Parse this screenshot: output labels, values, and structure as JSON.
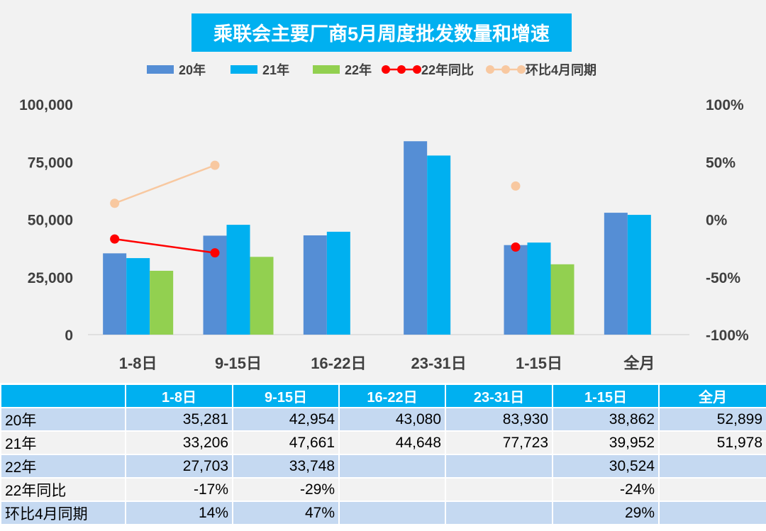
{
  "chart_data": {
    "type": "bar",
    "title": "乘联会主要厂商5月周度批发数量和增速",
    "categories": [
      "1-8日",
      "9-15日",
      "16-22日",
      "23-31日",
      "1-15日",
      "全月"
    ],
    "series": [
      {
        "name": "20年",
        "kind": "bar",
        "axis": "left",
        "color": "#558ed5",
        "values": [
          35281,
          42954,
          43080,
          83930,
          38862,
          52899
        ]
      },
      {
        "name": "21年",
        "kind": "bar",
        "axis": "left",
        "color": "#00b0f0",
        "values": [
          33206,
          47661,
          44648,
          77723,
          39952,
          51978
        ]
      },
      {
        "name": "22年",
        "kind": "bar",
        "axis": "left",
        "color": "#92d050",
        "values": [
          27703,
          33748,
          null,
          null,
          30524,
          null
        ]
      },
      {
        "name": "22年同比",
        "kind": "line",
        "axis": "right",
        "color": "#ff0000",
        "values": [
          -17,
          -29,
          null,
          null,
          -24,
          null
        ]
      },
      {
        "name": "环比4月同期",
        "kind": "line",
        "axis": "right",
        "color": "#f8c8a0",
        "values": [
          14,
          47,
          null,
          null,
          29,
          null
        ]
      }
    ],
    "y_left": {
      "min": 0,
      "max": 100000,
      "ticks": [
        "0",
        "25,000",
        "50,000",
        "75,000",
        "100,000"
      ]
    },
    "y_right": {
      "min": -100,
      "max": 100,
      "unit": "%",
      "ticks": [
        "-100%",
        "-50%",
        "0%",
        "50%",
        "100%"
      ]
    },
    "grid": false,
    "legend_placement": "top"
  },
  "table": {
    "header": [
      "",
      "1-8日",
      "9-15日",
      "16-22日",
      "23-31日",
      "1-15日",
      "全月"
    ],
    "rows": [
      {
        "label": "20年",
        "cells": [
          "35,281",
          "42,954",
          "43,080",
          "83,930",
          "38,862",
          "52,899"
        ]
      },
      {
        "label": "21年",
        "cells": [
          "33,206",
          "47,661",
          "44,648",
          "77,723",
          "39,952",
          "51,978"
        ]
      },
      {
        "label": "22年",
        "cells": [
          "27,703",
          "33,748",
          "",
          "",
          "30,524",
          ""
        ]
      },
      {
        "label": "22年同比",
        "cells": [
          "-17%",
          "-29%",
          "",
          "",
          "-24%",
          ""
        ]
      },
      {
        "label": "环比4月同期",
        "cells": [
          "14%",
          "47%",
          "",
          "",
          "29%",
          ""
        ]
      }
    ]
  },
  "colors": {
    "chart_background": "#f2f2f2",
    "title_background": "#00b0f0",
    "title_text": "#ffffff",
    "table_header": "#00b0f0",
    "row_odd": "#c5d9f1",
    "row_even": "#f2f2f2"
  }
}
